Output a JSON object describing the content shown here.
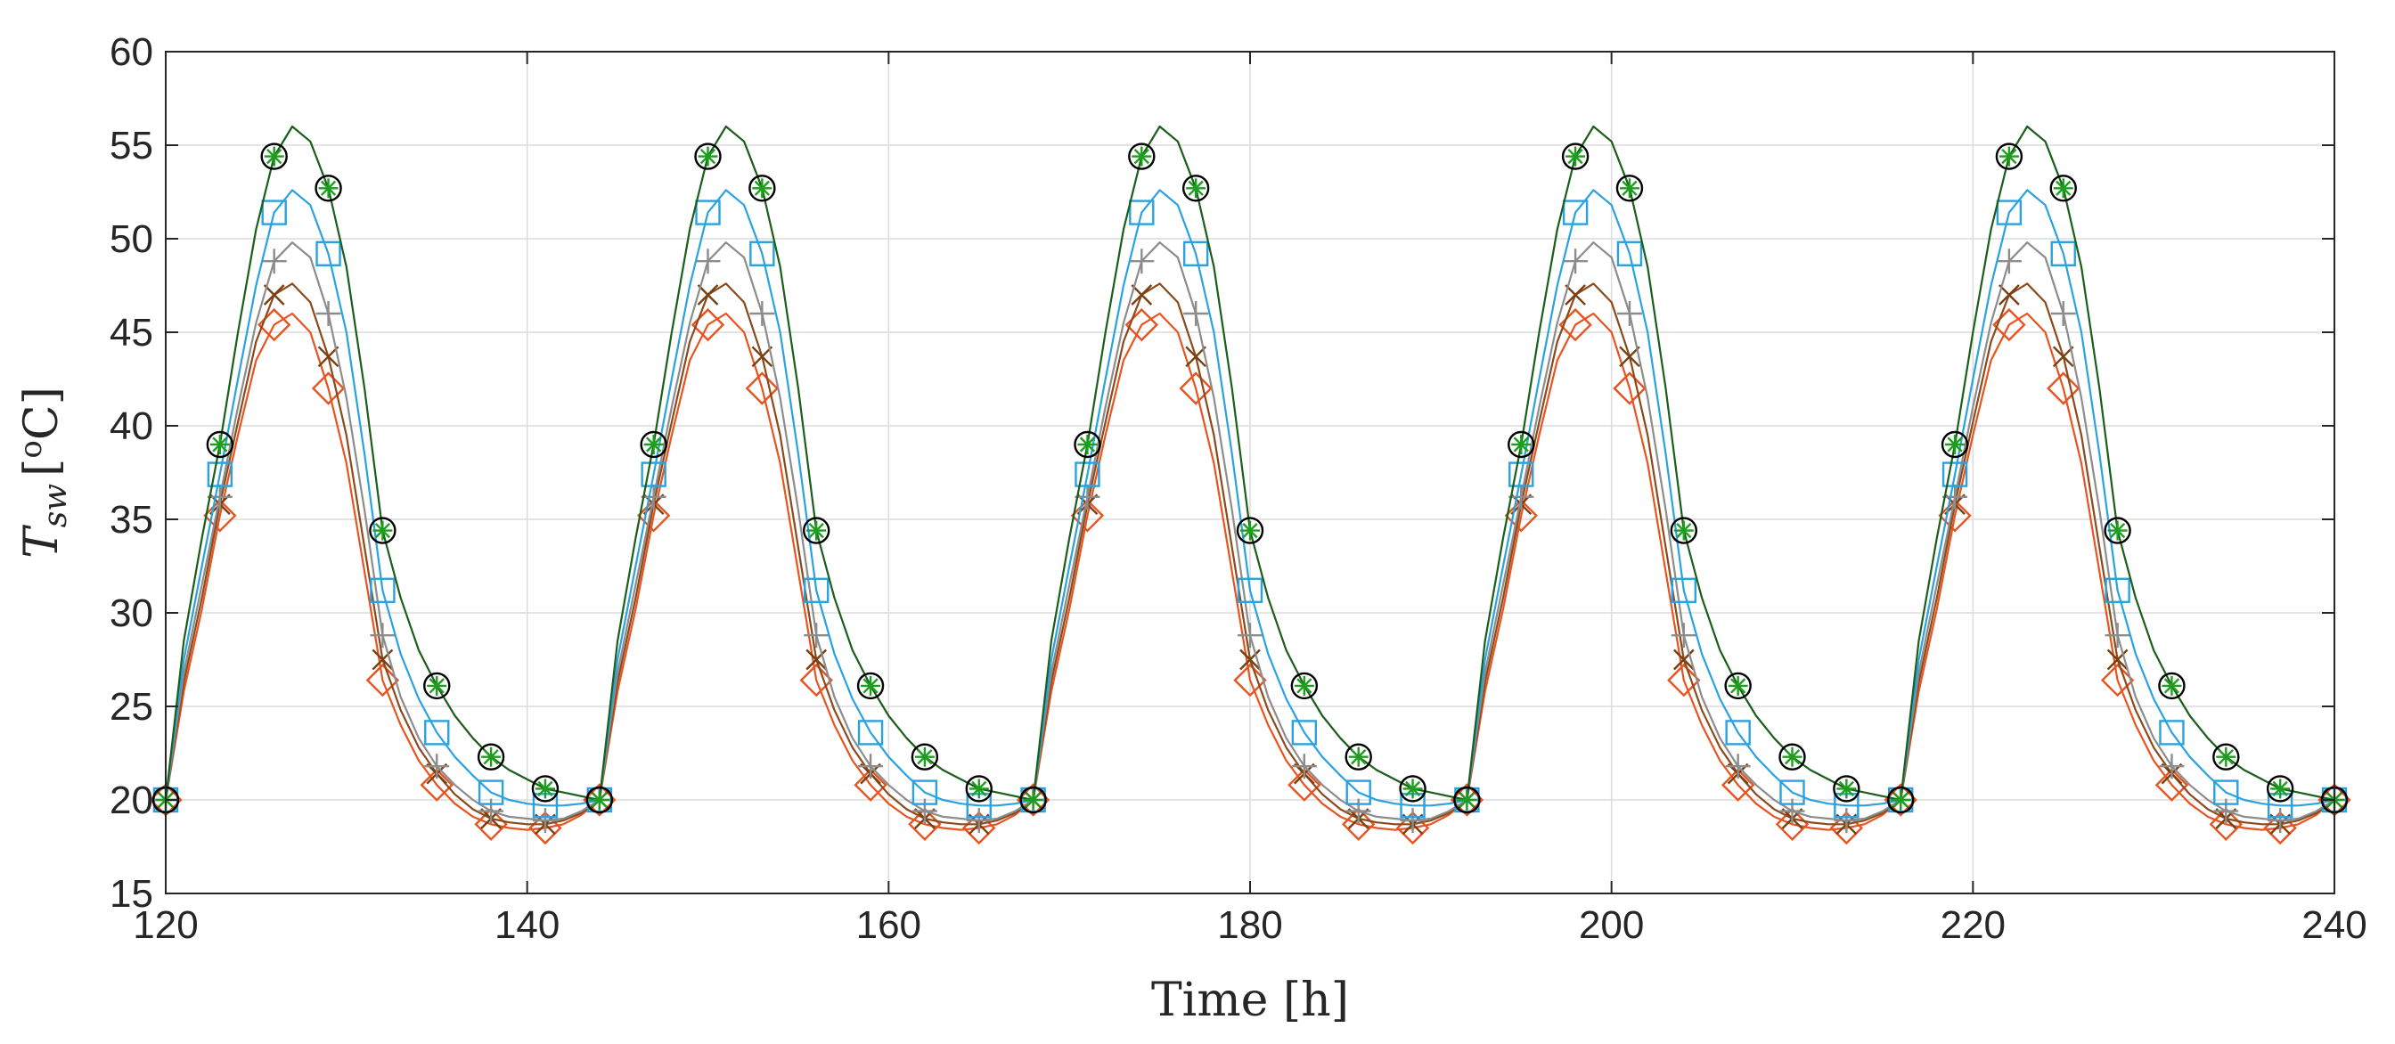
{
  "chart_data": {
    "type": "line",
    "title": "",
    "xlabel": "Time [h]",
    "ylabel_main": "T",
    "ylabel_sub": "sw",
    "ylabel_unit_open": "[",
    "ylabel_unit_sup": "o",
    "ylabel_unit_close": "C]",
    "xlim": [
      120,
      240
    ],
    "ylim": [
      15,
      60
    ],
    "xticks": [
      "120",
      "140",
      "160",
      "180",
      "200",
      "220",
      "240"
    ],
    "yticks": [
      "15",
      "20",
      "25",
      "30",
      "35",
      "40",
      "45",
      "50",
      "55",
      "60"
    ],
    "grid": true,
    "legend": "none",
    "period_hours": 24,
    "cycle_x_offsets": [
      0,
      1,
      2,
      3,
      4,
      5,
      6,
      7,
      8,
      9,
      10,
      11,
      12,
      13,
      14,
      15,
      16,
      17,
      18,
      19,
      20,
      21,
      22,
      23,
      24
    ],
    "series": [
      {
        "name": "series-1",
        "color": "#000000",
        "line_color": "#1a5e1a",
        "marker": "circle-star",
        "marker_offsets": [
          0,
          3,
          6,
          9,
          12,
          15,
          18,
          21,
          24
        ],
        "cycle_values": [
          20,
          28.5,
          34,
          39,
          45,
          50.5,
          54.4,
          56,
          55.2,
          52.7,
          48.5,
          42,
          34.4,
          30.8,
          28,
          26.1,
          24.5,
          23.3,
          22.3,
          21.6,
          21.1,
          20.6,
          20.4,
          20.2,
          20
        ]
      },
      {
        "name": "series-2",
        "color": "#2aa2e0",
        "line_color": "#2aa2e0",
        "marker": "square",
        "marker_offsets": [
          0,
          3,
          6,
          9,
          12,
          15,
          18,
          21,
          24
        ],
        "cycle_values": [
          20,
          27.5,
          32.5,
          37.4,
          42.5,
          47.5,
          51.4,
          52.6,
          51.8,
          49.2,
          45,
          38.5,
          31.2,
          27.8,
          25.4,
          23.6,
          22.3,
          21.3,
          20.4,
          20,
          19.8,
          19.7,
          19.7,
          19.8,
          20
        ]
      },
      {
        "name": "series-3",
        "color": "#8c8c8c",
        "line_color": "#8c8c8c",
        "marker": "plus",
        "marker_offsets": [
          0,
          3,
          6,
          9,
          12,
          15,
          18,
          21,
          24
        ],
        "cycle_values": [
          20,
          26.8,
          31.5,
          36.2,
          41,
          45.5,
          48.8,
          49.8,
          49,
          46,
          41.5,
          35.5,
          28.8,
          25.5,
          23.3,
          21.8,
          20.8,
          20,
          19.4,
          19.1,
          19,
          18.9,
          19,
          19.4,
          20
        ]
      },
      {
        "name": "series-4",
        "color": "#7a3f10",
        "line_color": "#8a4a1c",
        "marker": "cross",
        "marker_offsets": [
          0,
          3,
          6,
          9,
          12,
          15,
          18,
          21,
          24
        ],
        "cycle_values": [
          20,
          26.3,
          30.8,
          35.8,
          40.2,
          44.5,
          47,
          47.6,
          46.6,
          43.7,
          39.5,
          33.5,
          27.5,
          24.8,
          22.8,
          21.4,
          20.3,
          19.5,
          19,
          18.8,
          18.7,
          18.7,
          18.9,
          19.3,
          20
        ]
      },
      {
        "name": "series-5",
        "color": "#e8531f",
        "line_color": "#e8531f",
        "marker": "diamond",
        "marker_offsets": [
          0,
          3,
          6,
          9,
          12,
          15,
          18,
          21,
          24
        ],
        "cycle_values": [
          20,
          25.8,
          30.2,
          35.2,
          39.5,
          43.5,
          45.4,
          46,
          45,
          42,
          38,
          32.2,
          26.4,
          24,
          22.1,
          20.8,
          19.8,
          19.1,
          18.7,
          18.5,
          18.4,
          18.5,
          18.7,
          19.2,
          20
        ]
      }
    ]
  }
}
